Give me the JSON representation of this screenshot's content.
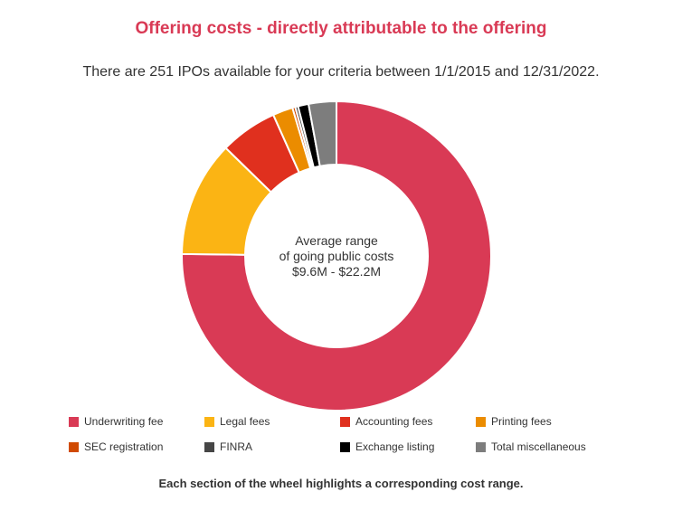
{
  "chart_data": {
    "type": "pie",
    "variant": "donut",
    "title": "Offering costs - directly attributable to the offering",
    "subtitle": "There are 251 IPOs available for your criteria between 1/1/2015 and 12/31/2022.",
    "center_label": [
      "Average range",
      "of going public costs",
      "$9.6M - $22.2M"
    ],
    "categories": [
      "Underwriting fee",
      "Legal fees",
      "Accounting fees",
      "Printing fees",
      "SEC registration",
      "FINRA",
      "Exchange listing",
      "Total miscellaneous"
    ],
    "values": [
      75.2,
      12.1,
      6.0,
      2.1,
      0.3,
      0.3,
      1.1,
      2.9
    ],
    "colors": [
      "#d93a55",
      "#fbb414",
      "#e0301e",
      "#eb8c00",
      "#d04a02",
      "#464646",
      "#000000",
      "#7d7d7d"
    ],
    "legend_position": "bottom",
    "footer": "Each section of the wheel highlights a corresponding cost range."
  }
}
